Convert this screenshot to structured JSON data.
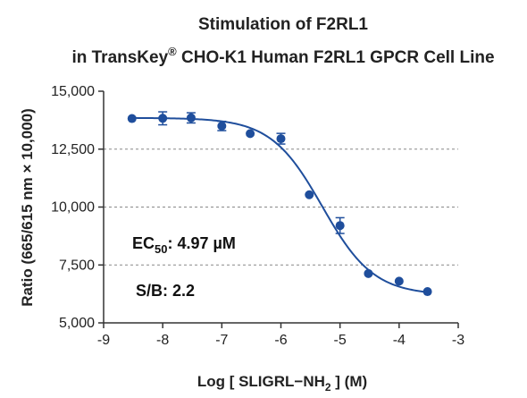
{
  "chart_data": {
    "type": "scatter",
    "title_line1": "Stimulation of  F2RL1",
    "title_line2_pre": "in TransKey",
    "title_line2_sup": "®",
    "title_line2_post": " CHO-K1 Human F2RL1 GPCR Cell Line",
    "xlabel_pre": "Log [ SLIGRL−NH",
    "xlabel_sub": "2",
    "xlabel_post": " ]  (M)",
    "ylabel": "Ratio (665/615 nm × 10,000)",
    "xlim": [
      -9,
      -3
    ],
    "ylim": [
      5000,
      15000
    ],
    "x_ticks": [
      -9,
      -8,
      -7,
      -6,
      -5,
      -4,
      -3
    ],
    "x_tick_labels": [
      "-9",
      "-8",
      "-7",
      "-6",
      "-5",
      "-4",
      "-3"
    ],
    "y_ticks": [
      5000,
      7500,
      10000,
      12500,
      15000
    ],
    "y_tick_labels": [
      "5,000",
      "7,500",
      "10,000",
      "12,500",
      "15,000"
    ],
    "grid": "horizontal dashed at 7,500, 10,000, 12,500",
    "points": [
      {
        "x": -8.52,
        "y": 13820,
        "err": 0
      },
      {
        "x": -8.0,
        "y": 13830,
        "err": 280
      },
      {
        "x": -7.52,
        "y": 13850,
        "err": 220
      },
      {
        "x": -7.0,
        "y": 13500,
        "err": 200
      },
      {
        "x": -6.52,
        "y": 13170,
        "err": 0
      },
      {
        "x": -6.0,
        "y": 12950,
        "err": 230
      },
      {
        "x": -5.52,
        "y": 10530,
        "err": 0
      },
      {
        "x": -5.0,
        "y": 9200,
        "err": 340
      },
      {
        "x": -4.52,
        "y": 7130,
        "err": 0
      },
      {
        "x": -4.0,
        "y": 6800,
        "err": 0
      },
      {
        "x": -3.52,
        "y": 6350,
        "err": 0
      }
    ],
    "fit": {
      "model": "4PL",
      "bottom": 6200,
      "top": 13850,
      "logEC50": -5.3,
      "hill": 1.0
    },
    "annotations": {
      "ec_pre": "EC",
      "ec_sub": "50",
      "ec_post": ": 4.97 µM",
      "sb": "S/B: 2.2"
    },
    "colors": {
      "series": "#1f4e9c",
      "grid": "#888888",
      "axis": "#333333"
    }
  }
}
